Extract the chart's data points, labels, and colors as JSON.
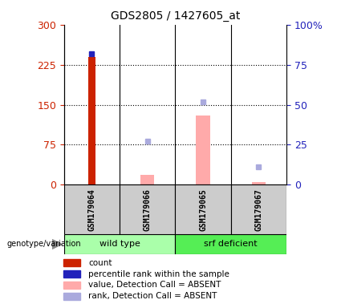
{
  "title": "GDS2805 / 1427605_at",
  "samples": [
    "GSM179064",
    "GSM179066",
    "GSM179065",
    "GSM179067"
  ],
  "count_values": [
    240,
    null,
    null,
    null
  ],
  "percentile_values": [
    82,
    null,
    null,
    null
  ],
  "value_absent": [
    null,
    18,
    130,
    5
  ],
  "rank_absent_pct": [
    null,
    27,
    52,
    11
  ],
  "left_ylim": [
    0,
    300
  ],
  "left_yticks": [
    0,
    75,
    150,
    225,
    300
  ],
  "right_ylim": [
    0,
    100
  ],
  "right_yticks": [
    0,
    25,
    50,
    75,
    100
  ],
  "count_color": "#cc2200",
  "percentile_color": "#2222bb",
  "value_absent_color": "#ffaaaa",
  "rank_absent_color": "#aaaadd",
  "plot_bg_color": "#ffffff",
  "sample_bg_color": "#cccccc",
  "wt_color": "#aaffaa",
  "srf_color": "#55ee55",
  "legend_items": [
    {
      "label": "count",
      "color": "#cc2200"
    },
    {
      "label": "percentile rank within the sample",
      "color": "#2222bb"
    },
    {
      "label": "value, Detection Call = ABSENT",
      "color": "#ffaaaa"
    },
    {
      "label": "rank, Detection Call = ABSENT",
      "color": "#aaaadd"
    }
  ]
}
